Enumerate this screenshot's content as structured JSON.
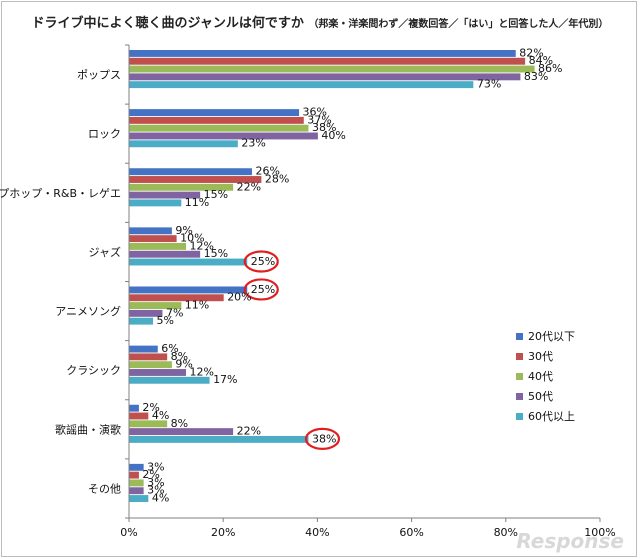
{
  "chart_data": {
    "type": "bar",
    "orientation": "horizontal",
    "title": "ドライブ中によく聴く曲のジャンルは何ですか",
    "subtitle": "（邦楽・洋楽問わず／複数回答／「はい」と回答した人／年代別）",
    "categories": [
      "ポップス",
      "ロック",
      "ヒップホップ・R&B・レゲエ",
      "ジャズ",
      "アニメソング",
      "クラシック",
      "歌謡曲・演歌",
      "その他"
    ],
    "series": [
      {
        "name": "20代以下",
        "color": "#4472c4",
        "values": [
          82,
          36,
          26,
          9,
          25,
          6,
          2,
          3
        ]
      },
      {
        "name": "30代",
        "color": "#c0504d",
        "values": [
          84,
          37,
          28,
          10,
          20,
          8,
          4,
          2
        ]
      },
      {
        "name": "40代",
        "color": "#9bbb59",
        "values": [
          86,
          38,
          22,
          12,
          11,
          9,
          8,
          3
        ]
      },
      {
        "name": "50代",
        "color": "#8064a2",
        "values": [
          83,
          40,
          15,
          15,
          7,
          12,
          22,
          3
        ]
      },
      {
        "name": "60代以上",
        "color": "#4bacc6",
        "values": [
          73,
          23,
          11,
          25,
          5,
          17,
          38,
          4
        ]
      }
    ],
    "value_suffix": "%",
    "xlim": [
      0,
      100
    ],
    "xticks": [
      "0%",
      "20%",
      "40%",
      "60%",
      "80%",
      "100%"
    ],
    "grid": false,
    "legend_position": "right",
    "highlighted": [
      {
        "category": "ジャズ",
        "series": "60代以上"
      },
      {
        "category": "アニメソング",
        "series": "20代以下"
      },
      {
        "category": "歌謡曲・演歌",
        "series": "60代以上"
      }
    ],
    "highlight_color": "#e02020"
  },
  "watermark": "Response"
}
